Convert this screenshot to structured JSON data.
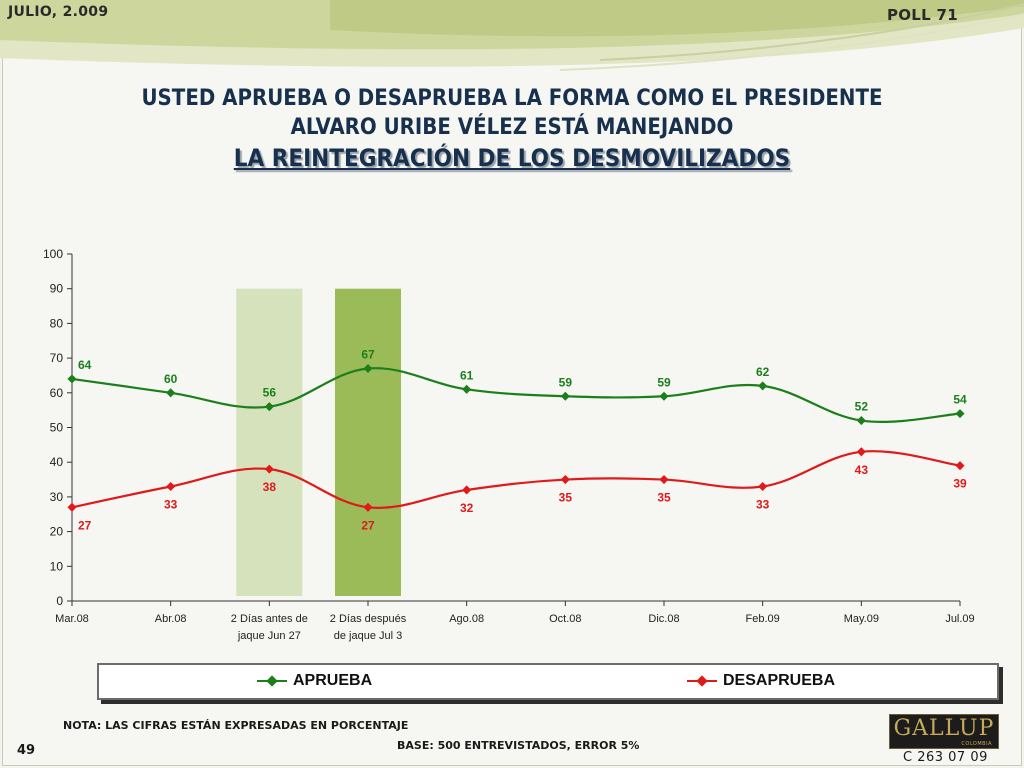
{
  "header": {
    "date": "JULIO, 2.009",
    "poll": "POLL 71"
  },
  "title": {
    "line1": "USTED APRUEBA O DESAPRUEBA LA FORMA COMO EL PRESIDENTE",
    "line2": "ALVARO URIBE VÉLEZ ESTÁ MANEJANDO",
    "line3": "LA REINTEGRACIÓN DE LOS DESMOVILIZADOS"
  },
  "chart_data": {
    "type": "line",
    "categories": [
      [
        "Mar.08"
      ],
      [
        "Abr.08"
      ],
      [
        "2 Días antes de",
        "jaque Jun 27"
      ],
      [
        "2 Días después",
        "de jaque Jul 3"
      ],
      [
        "Ago.08"
      ],
      [
        "Oct.08"
      ],
      [
        "Dic.08"
      ],
      [
        "Feb.09"
      ],
      [
        "May.09"
      ],
      [
        "Jul.09"
      ]
    ],
    "series": [
      {
        "name": "APRUEBA",
        "values": [
          64,
          60,
          56,
          67,
          61,
          59,
          59,
          62,
          52,
          54
        ],
        "color": "#1c7f1c"
      },
      {
        "name": "DESAPRUEBA",
        "values": [
          27,
          33,
          38,
          27,
          32,
          35,
          35,
          33,
          43,
          39
        ],
        "color": "#e0191b"
      }
    ],
    "ylim": [
      0,
      100
    ],
    "yticks": [
      0,
      10,
      20,
      30,
      40,
      50,
      60,
      70,
      80,
      90,
      100
    ],
    "highlight_bands": [
      {
        "category_index": 2,
        "top": 90,
        "color": "#d5e2bb"
      },
      {
        "category_index": 3,
        "top": 90,
        "color": "#9bbb59"
      }
    ],
    "grid": false,
    "legend": "bottom"
  },
  "legend": {
    "approve": "APRUEBA",
    "disapprove": "DESAPRUEBA"
  },
  "footer": {
    "note": "NOTA: LAS CIFRAS ESTÁN EXPRESADAS EN PORCENTAJE",
    "page": "49",
    "base": "BASE: 500 ENTREVISTADOS, ERROR 5%",
    "code": "C 263 07 09",
    "logo": "GALLUP",
    "logo_sub": "COLOMBIA"
  }
}
